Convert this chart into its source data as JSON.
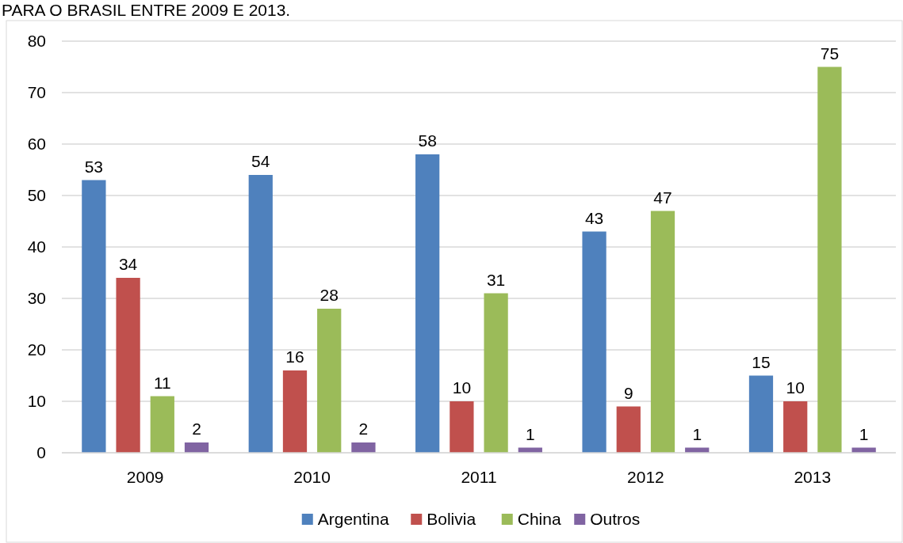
{
  "chart_data": {
    "type": "bar",
    "title": "PARA O BRASIL ENTRE 2009 E 2013.",
    "categories": [
      "2009",
      "2010",
      "2011",
      "2012",
      "2013"
    ],
    "series": [
      {
        "name": "Argentina",
        "color": "#4f81bd",
        "values": [
          53,
          54,
          58,
          43,
          15
        ]
      },
      {
        "name": "Bolivia",
        "color": "#c0504d",
        "values": [
          34,
          16,
          10,
          9,
          10
        ]
      },
      {
        "name": "China",
        "color": "#9bbb59",
        "values": [
          11,
          28,
          31,
          47,
          75
        ]
      },
      {
        "name": "Outros",
        "color": "#8064a2",
        "values": [
          2,
          2,
          1,
          1,
          1
        ]
      }
    ],
    "ylim": [
      0,
      80
    ],
    "yticks": [
      0,
      10,
      20,
      30,
      40,
      50,
      60,
      70,
      80
    ],
    "grid": "y",
    "legend": "bottom",
    "data_labels": true
  }
}
